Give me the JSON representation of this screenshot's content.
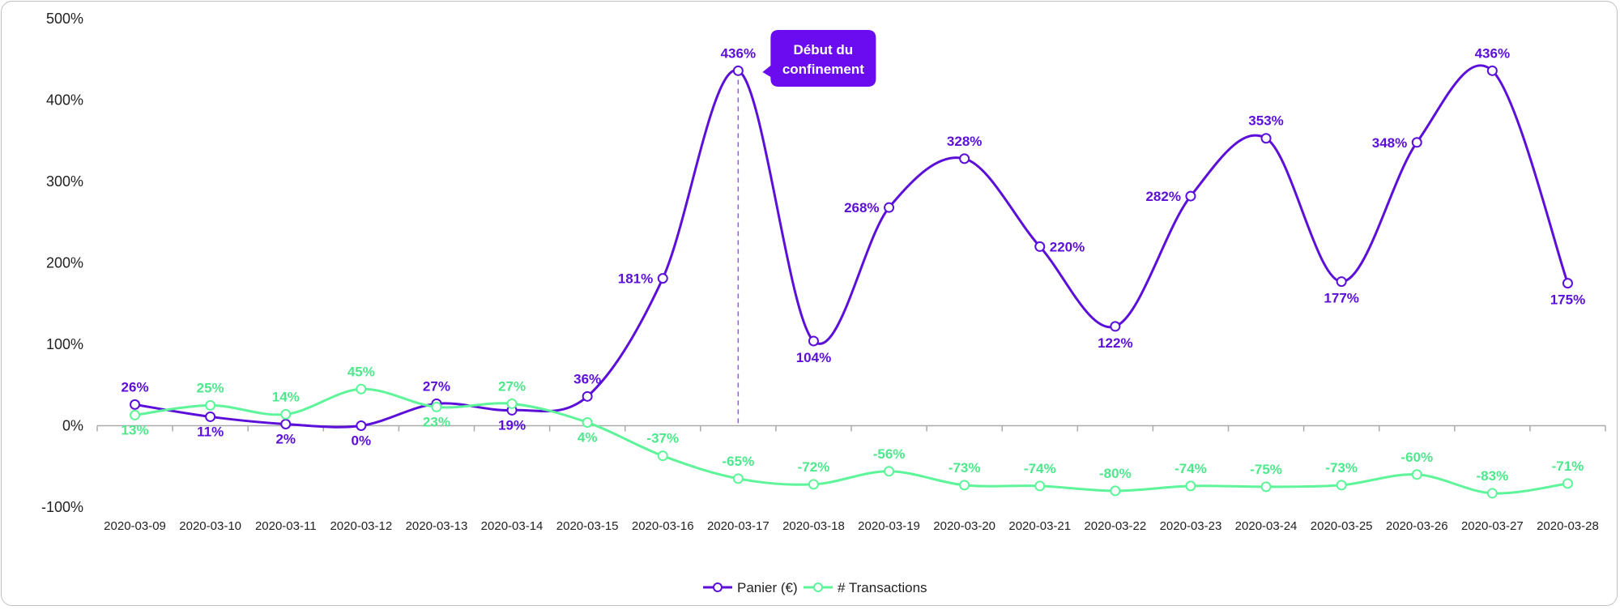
{
  "chart_data": {
    "type": "line",
    "categories": [
      "2020-03-09",
      "2020-03-10",
      "2020-03-11",
      "2020-03-12",
      "2020-03-13",
      "2020-03-14",
      "2020-03-15",
      "2020-03-16",
      "2020-03-17",
      "2020-03-18",
      "2020-03-19",
      "2020-03-20",
      "2020-03-21",
      "2020-03-22",
      "2020-03-23",
      "2020-03-24",
      "2020-03-25",
      "2020-03-26",
      "2020-03-27",
      "2020-03-28"
    ],
    "y_ticks": [
      "500%",
      "400%",
      "300%",
      "200%",
      "100%",
      "0%",
      "-100%"
    ],
    "ylim": [
      -100,
      500
    ],
    "grid": false,
    "legend_position": "bottom",
    "series": [
      {
        "name": "Panier (€)",
        "color": "#5b0fd8",
        "values": [
          26,
          11,
          2,
          0,
          27,
          19,
          36,
          181,
          436,
          104,
          268,
          328,
          220,
          122,
          282,
          353,
          177,
          348,
          436,
          175
        ],
        "labels": [
          "26%",
          "11%",
          "2%",
          "0%",
          "27%",
          "19%",
          "36%",
          "181%",
          "436%",
          "104%",
          "268%",
          "328%",
          "220%",
          "122%",
          "282%",
          "353%",
          "177%",
          "348%",
          "436%",
          "175%"
        ]
      },
      {
        "name": "# Transactions",
        "color": "#5ef59a",
        "values": [
          13,
          25,
          14,
          45,
          23,
          27,
          4,
          -37,
          -65,
          -72,
          -56,
          -73,
          -74,
          -80,
          -74,
          -75,
          -73,
          -60,
          -83,
          -71
        ],
        "labels": [
          "13%",
          "25%",
          "14%",
          "45%",
          "23%",
          "27%",
          "4%",
          "-37%",
          "-65%",
          "-72%",
          "-56%",
          "-73%",
          "-74%",
          "-80%",
          "-74%",
          "-75%",
          "-73%",
          "-60%",
          "-83%",
          "-71%"
        ]
      }
    ],
    "annotation": {
      "text_line1": "Début du",
      "text_line2": "confinement",
      "category": "2020-03-17",
      "color": "#6a0bf0"
    }
  }
}
